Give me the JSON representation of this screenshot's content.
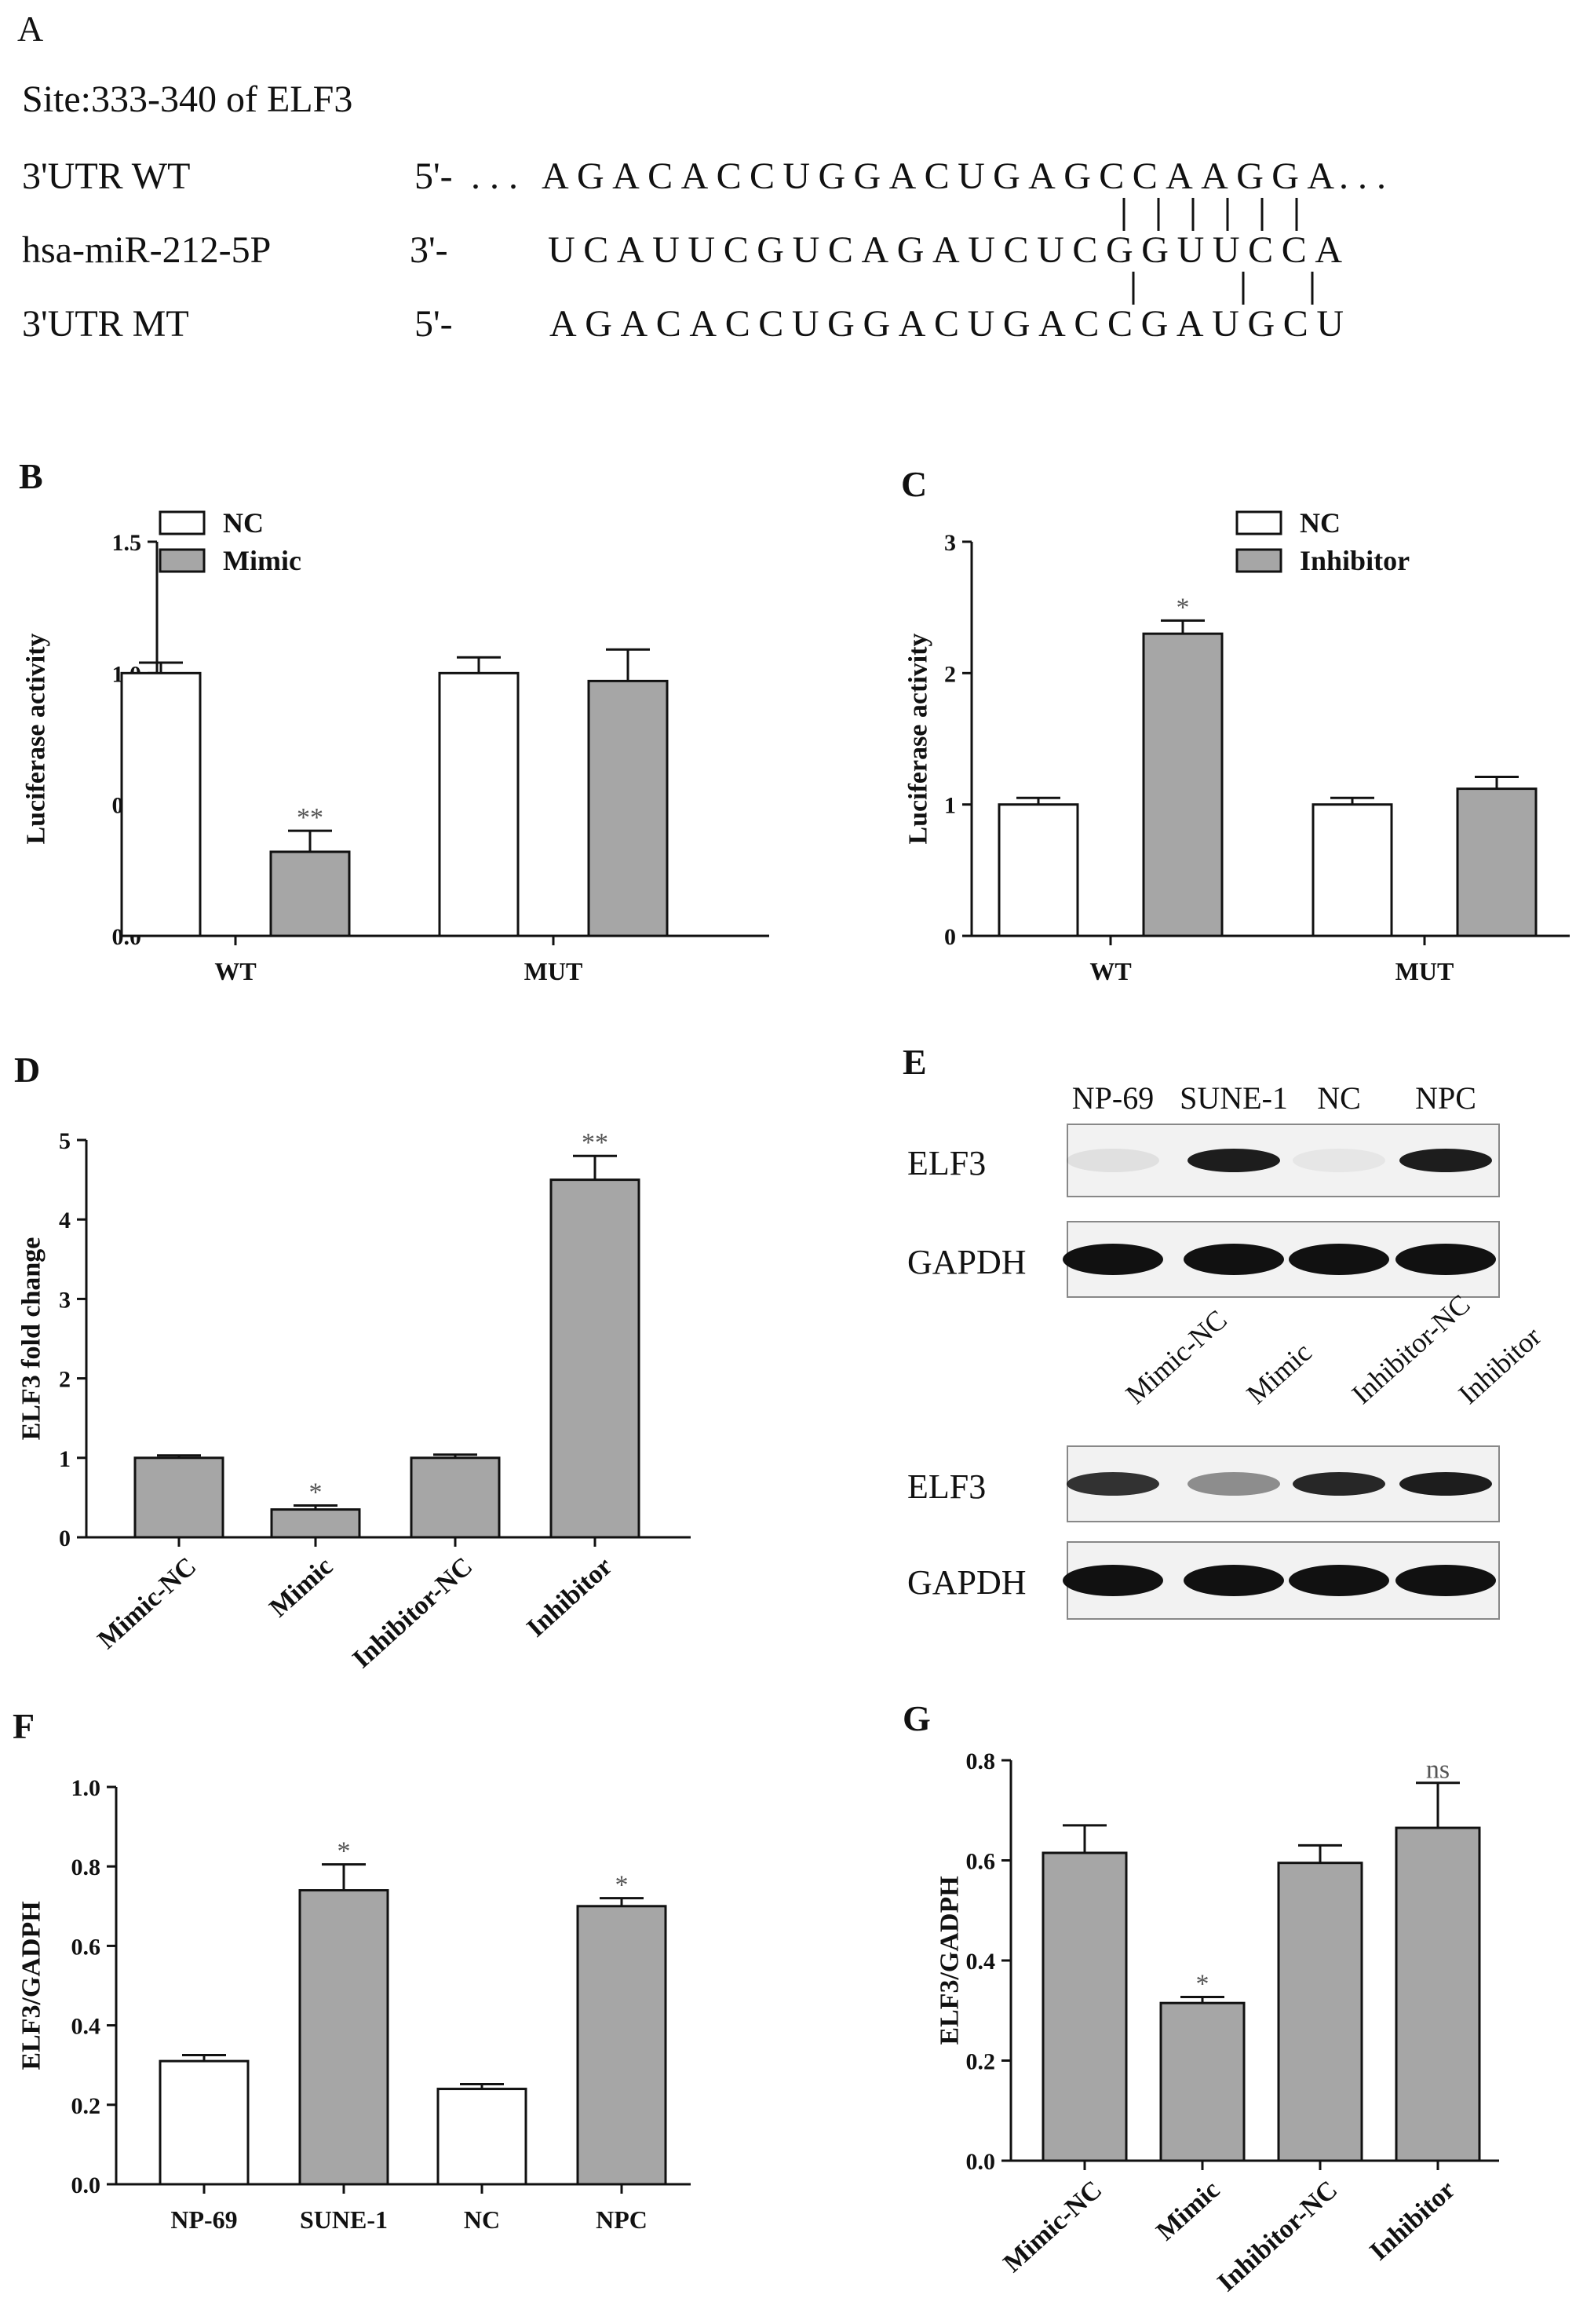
{
  "colors": {
    "open_bar": "#ffffff",
    "filled_bar": "#a6a6a6",
    "stroke": "#111111",
    "significance": "#555555"
  },
  "panel_a": {
    "label": "A",
    "site": "Site:333-340 of ELF3",
    "rows": [
      {
        "name": "3'UTR WT",
        "prime": "5'-",
        "sequence": "AGACACCUGGACUGAGCCAAGGA",
        "prefix": ". . .",
        "suffix": ". . ."
      },
      {
        "name": "hsa-miR-212-5P",
        "prime": "3'-",
        "sequence": "UCAUUCGUCAGAUCUCGGUUCCA",
        "prefix": "",
        "suffix": ""
      },
      {
        "name": "3'UTR MT",
        "prime": "5'-",
        "sequence": "AGACACCUGGACUGACCGAUGCU",
        "prefix": "",
        "suffix": ""
      }
    ]
  },
  "panel_e": {
    "label": "E",
    "blot1": {
      "lanes": [
        "NP-69",
        "SUNE-1",
        "NC",
        "NPC"
      ],
      "rows": [
        {
          "name": "ELF3",
          "intensity": [
            0.08,
            0.95,
            0.05,
            0.95
          ]
        },
        {
          "name": "GAPDH",
          "intensity": [
            1,
            1,
            1,
            1
          ]
        }
      ]
    },
    "blot2": {
      "lanes": [
        "Mimic-NC",
        "Mimic",
        "Inhibitor-NC",
        "Inhibitor"
      ],
      "rows": [
        {
          "name": "ELF3",
          "intensity": [
            0.85,
            0.45,
            0.9,
            0.95
          ]
        },
        {
          "name": "GAPDH",
          "intensity": [
            1,
            1,
            1,
            1
          ]
        }
      ]
    }
  },
  "chart_data": [
    {
      "id": "B",
      "panel": "B",
      "type": "bar",
      "ylabel": "Luciferase activity",
      "ylim": [
        0,
        1.5
      ],
      "yticks": [
        "0.0",
        "0.5",
        "1.0",
        "1.5"
      ],
      "categories": [
        "WT",
        "MUT"
      ],
      "series": [
        {
          "name": "NC",
          "values": [
            1.0,
            1.0
          ],
          "errors": [
            0.04,
            0.06
          ],
          "fill": "open"
        },
        {
          "name": "Mimic",
          "values": [
            0.32,
            0.97
          ],
          "errors": [
            0.08,
            0.12
          ],
          "fill": "filled"
        }
      ],
      "significance": [
        {
          "category": 0,
          "series": 1,
          "text": "**"
        }
      ],
      "legend": "top-left"
    },
    {
      "id": "C",
      "panel": "C",
      "type": "bar",
      "ylabel": "Luciferase activity",
      "ylim": [
        0,
        3
      ],
      "yticks": [
        "0",
        "1",
        "2",
        "3"
      ],
      "categories": [
        "WT",
        "MUT"
      ],
      "series": [
        {
          "name": "NC",
          "values": [
            1.0,
            1.0
          ],
          "errors": [
            0.05,
            0.05
          ],
          "fill": "open"
        },
        {
          "name": "Inhibitor",
          "values": [
            2.3,
            1.12
          ],
          "errors": [
            0.1,
            0.09
          ],
          "fill": "filled"
        }
      ],
      "significance": [
        {
          "category": 0,
          "series": 1,
          "text": "*"
        }
      ],
      "legend": "top-center"
    },
    {
      "id": "D",
      "panel": "D",
      "type": "bar",
      "ylabel": "ELF3 fold change",
      "ylim": [
        0,
        5
      ],
      "yticks": [
        "0",
        "1",
        "2",
        "3",
        "4",
        "5"
      ],
      "categories": [
        "Mimic-NC",
        "Mimic",
        "Inhibitor-NC",
        "Inhibitor"
      ],
      "rotate": true,
      "series": [
        {
          "name": "",
          "values": [
            1.0,
            0.35,
            1.0,
            4.5
          ],
          "errors": [
            0.03,
            0.05,
            0.04,
            0.3
          ],
          "fills": [
            "filled",
            "filled",
            "filled",
            "filled"
          ]
        }
      ],
      "significance": [
        {
          "category": 1,
          "series": 0,
          "text": "*"
        },
        {
          "category": 3,
          "series": 0,
          "text": "**"
        }
      ]
    },
    {
      "id": "F",
      "panel": "F",
      "type": "bar",
      "ylabel": "ELF3/GADPH",
      "ylim": [
        0,
        1.0
      ],
      "yticks": [
        "0.0",
        "0.2",
        "0.4",
        "0.6",
        "0.8",
        "1.0"
      ],
      "categories": [
        "NP-69",
        "SUNE-1",
        "NC",
        "NPC"
      ],
      "series": [
        {
          "name": "",
          "values": [
            0.31,
            0.74,
            0.24,
            0.7
          ],
          "errors": [
            0.015,
            0.065,
            0.012,
            0.02
          ],
          "fills": [
            "open",
            "filled",
            "open",
            "filled"
          ]
        }
      ],
      "significance": [
        {
          "category": 1,
          "series": 0,
          "text": "*"
        },
        {
          "category": 3,
          "series": 0,
          "text": "*"
        }
      ]
    },
    {
      "id": "G",
      "panel": "G",
      "type": "bar",
      "ylabel": "ELF3/GADPH",
      "ylim": [
        0,
        0.8
      ],
      "yticks": [
        "0.0",
        "0.2",
        "0.4",
        "0.6",
        "0.8"
      ],
      "categories": [
        "Mimic-NC",
        "Mimic",
        "Inhibitor-NC",
        "Inhibitor"
      ],
      "rotate": true,
      "series": [
        {
          "name": "",
          "values": [
            0.615,
            0.315,
            0.595,
            0.665
          ],
          "errors": [
            0.055,
            0.012,
            0.035,
            0.09
          ],
          "fills": [
            "filled",
            "filled",
            "filled",
            "filled"
          ]
        }
      ],
      "significance": [
        {
          "category": 1,
          "series": 0,
          "text": "*"
        },
        {
          "category": 3,
          "series": 0,
          "text": "ns"
        }
      ]
    }
  ]
}
